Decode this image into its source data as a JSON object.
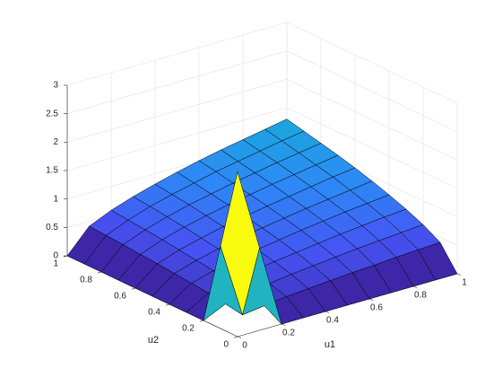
{
  "chart_data": {
    "type": "surface",
    "xlabel": "u1",
    "ylabel": "u2",
    "x": [
      0,
      0.1,
      0.2,
      0.3,
      0.4,
      0.5,
      0.6,
      0.7,
      0.8,
      0.9,
      1
    ],
    "y": [
      0,
      0.1,
      0.2,
      0.3,
      0.4,
      0.5,
      0.6,
      0.7,
      0.8,
      0.9,
      1
    ],
    "z": [
      [
        2.9,
        1.45,
        0,
        0,
        0,
        0,
        0,
        0,
        0,
        0,
        0
      ],
      [
        1.45,
        0.13,
        0.18,
        0.23,
        0.26,
        0.29,
        0.32,
        0.34,
        0.37,
        0.39,
        0.41
      ],
      [
        0,
        0.18,
        0.26,
        0.32,
        0.37,
        0.41,
        0.45,
        0.49,
        0.52,
        0.55,
        0.58
      ],
      [
        0,
        0.23,
        0.32,
        0.39,
        0.45,
        0.5,
        0.55,
        0.6,
        0.64,
        0.68,
        0.71
      ],
      [
        0,
        0.26,
        0.37,
        0.45,
        0.52,
        0.58,
        0.64,
        0.69,
        0.74,
        0.78,
        0.82
      ],
      [
        0,
        0.29,
        0.41,
        0.5,
        0.58,
        0.65,
        0.71,
        0.77,
        0.82,
        0.87,
        0.92
      ],
      [
        0,
        0.32,
        0.45,
        0.55,
        0.64,
        0.71,
        0.78,
        0.84,
        0.9,
        0.96,
        1.01
      ],
      [
        0,
        0.34,
        0.49,
        0.6,
        0.69,
        0.77,
        0.84,
        0.91,
        0.97,
        1.03,
        1.09
      ],
      [
        0,
        0.37,
        0.52,
        0.64,
        0.74,
        0.82,
        0.9,
        0.97,
        1.04,
        1.1,
        1.16
      ],
      [
        0,
        0.39,
        0.55,
        0.68,
        0.78,
        0.87,
        0.96,
        1.03,
        1.1,
        1.17,
        1.23
      ],
      [
        0,
        0.41,
        0.58,
        0.71,
        0.82,
        0.92,
        1.01,
        1.09,
        1.16,
        1.23,
        1.3
      ]
    ],
    "xlim": [
      0,
      1
    ],
    "ylim": [
      0,
      1
    ],
    "zlim": [
      0,
      3
    ],
    "xticks": [
      0,
      0.2,
      0.4,
      0.6,
      0.8,
      1
    ],
    "yticks": [
      0,
      0.2,
      0.4,
      0.6,
      0.8,
      1
    ],
    "zticks": [
      0,
      0.5,
      1,
      1.5,
      2,
      2.5,
      3
    ],
    "grid": true,
    "colormap": [
      "#3e26a8",
      "#4653f2",
      "#2e87f7",
      "#1aa9dc",
      "#25bfa6",
      "#8fc640",
      "#f5ba3a",
      "#f9fb0e"
    ]
  }
}
